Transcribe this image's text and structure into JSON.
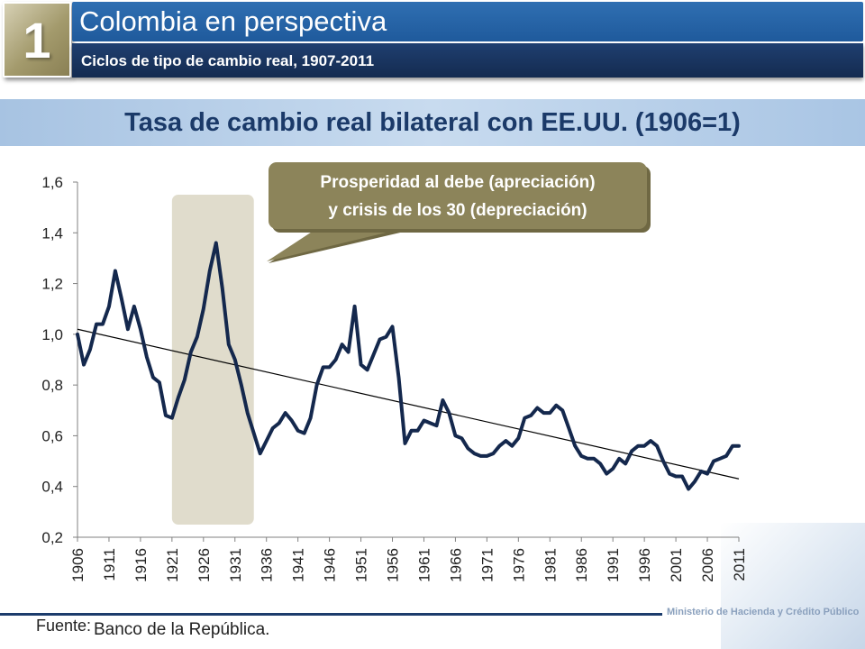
{
  "header": {
    "section_number": "1",
    "title": "Colombia en perspectiva",
    "subtitle": "Ciclos de tipo de cambio real, 1907-2011"
  },
  "chart_data": {
    "type": "line",
    "title": "Tasa de cambio real bilateral con EE.UU. (1906=1)",
    "ylim": [
      0.2,
      1.6
    ],
    "y_ticks": [
      "0,2",
      "0,4",
      "0,6",
      "0,8",
      "1,0",
      "1,2",
      "1,4",
      "1,6"
    ],
    "y_tick_values": [
      0.2,
      0.4,
      0.6,
      0.8,
      1.0,
      1.2,
      1.4,
      1.6
    ],
    "x_ticks": [
      "1906",
      "1911",
      "1916",
      "1921",
      "1926",
      "1931",
      "1936",
      "1941",
      "1946",
      "1951",
      "1956",
      "1961",
      "1966",
      "1971",
      "1976",
      "1981",
      "1986",
      "1991",
      "1996",
      "2001",
      "2006",
      "2011"
    ],
    "xlim": [
      1906,
      2011
    ],
    "grid": false,
    "series": [
      {
        "color": "#14284d",
        "points": [
          [
            1906,
            1.0
          ],
          [
            1907,
            0.88
          ],
          [
            1908,
            0.94
          ],
          [
            1909,
            1.04
          ],
          [
            1910,
            1.04
          ],
          [
            1911,
            1.11
          ],
          [
            1912,
            1.25
          ],
          [
            1913,
            1.14
          ],
          [
            1914,
            1.02
          ],
          [
            1915,
            1.11
          ],
          [
            1916,
            1.02
          ],
          [
            1917,
            0.91
          ],
          [
            1918,
            0.83
          ],
          [
            1919,
            0.81
          ],
          [
            1920,
            0.68
          ],
          [
            1921,
            0.67
          ],
          [
            1922,
            0.75
          ],
          [
            1923,
            0.82
          ],
          [
            1924,
            0.93
          ],
          [
            1925,
            0.99
          ],
          [
            1926,
            1.1
          ],
          [
            1927,
            1.25
          ],
          [
            1928,
            1.36
          ],
          [
            1929,
            1.18
          ],
          [
            1930,
            0.96
          ],
          [
            1931,
            0.9
          ],
          [
            1932,
            0.8
          ],
          [
            1933,
            0.69
          ],
          [
            1934,
            0.61
          ],
          [
            1935,
            0.53
          ],
          [
            1936,
            0.58
          ],
          [
            1937,
            0.63
          ],
          [
            1938,
            0.65
          ],
          [
            1939,
            0.69
          ],
          [
            1940,
            0.66
          ],
          [
            1941,
            0.62
          ],
          [
            1942,
            0.61
          ],
          [
            1943,
            0.67
          ],
          [
            1944,
            0.8
          ],
          [
            1945,
            0.87
          ],
          [
            1946,
            0.87
          ],
          [
            1947,
            0.9
          ],
          [
            1948,
            0.96
          ],
          [
            1949,
            0.93
          ],
          [
            1950,
            1.11
          ],
          [
            1951,
            0.88
          ],
          [
            1952,
            0.86
          ],
          [
            1953,
            0.92
          ],
          [
            1954,
            0.98
          ],
          [
            1955,
            0.99
          ],
          [
            1956,
            1.03
          ],
          [
            1957,
            0.83
          ],
          [
            1958,
            0.57
          ],
          [
            1959,
            0.62
          ],
          [
            1960,
            0.62
          ],
          [
            1961,
            0.66
          ],
          [
            1962,
            0.65
          ],
          [
            1963,
            0.64
          ],
          [
            1964,
            0.74
          ],
          [
            1965,
            0.69
          ],
          [
            1966,
            0.6
          ],
          [
            1967,
            0.59
          ],
          [
            1968,
            0.55
          ],
          [
            1969,
            0.53
          ],
          [
            1970,
            0.52
          ],
          [
            1971,
            0.52
          ],
          [
            1972,
            0.53
          ],
          [
            1973,
            0.56
          ],
          [
            1974,
            0.58
          ],
          [
            1975,
            0.56
          ],
          [
            1976,
            0.59
          ],
          [
            1977,
            0.67
          ],
          [
            1978,
            0.68
          ],
          [
            1979,
            0.71
          ],
          [
            1980,
            0.69
          ],
          [
            1981,
            0.69
          ],
          [
            1982,
            0.72
          ],
          [
            1983,
            0.7
          ],
          [
            1984,
            0.63
          ],
          [
            1985,
            0.56
          ],
          [
            1986,
            0.52
          ],
          [
            1987,
            0.51
          ],
          [
            1988,
            0.51
          ],
          [
            1989,
            0.49
          ],
          [
            1990,
            0.45
          ],
          [
            1991,
            0.47
          ],
          [
            1992,
            0.51
          ],
          [
            1993,
            0.49
          ],
          [
            1994,
            0.54
          ],
          [
            1995,
            0.56
          ],
          [
            1996,
            0.56
          ],
          [
            1997,
            0.58
          ],
          [
            1998,
            0.56
          ],
          [
            1999,
            0.5
          ],
          [
            2000,
            0.45
          ],
          [
            2001,
            0.44
          ],
          [
            2002,
            0.44
          ],
          [
            2003,
            0.39
          ],
          [
            2004,
            0.42
          ],
          [
            2005,
            0.46
          ],
          [
            2006,
            0.45
          ],
          [
            2007,
            0.5
          ],
          [
            2008,
            0.51
          ],
          [
            2009,
            0.52
          ],
          [
            2010,
            0.56
          ],
          [
            2011,
            0.56
          ]
        ]
      }
    ],
    "trendline": {
      "color": "#000000",
      "points": [
        [
          1906,
          1.02
        ],
        [
          2011,
          0.43
        ]
      ]
    },
    "highlight": {
      "x_range": [
        1921,
        1934
      ],
      "color": "#e0dccc"
    },
    "annotation": {
      "line1": "Prosperidad al debe (apreciación)",
      "line2": "y crisis de los 30 (depreciación)",
      "bg": "#8c845a",
      "text_color": "#ffffff"
    }
  },
  "footer": {
    "label": "Fuente:",
    "source": "Banco de la República.",
    "ministry": "Ministerio de Hacienda y Crédito Público"
  }
}
